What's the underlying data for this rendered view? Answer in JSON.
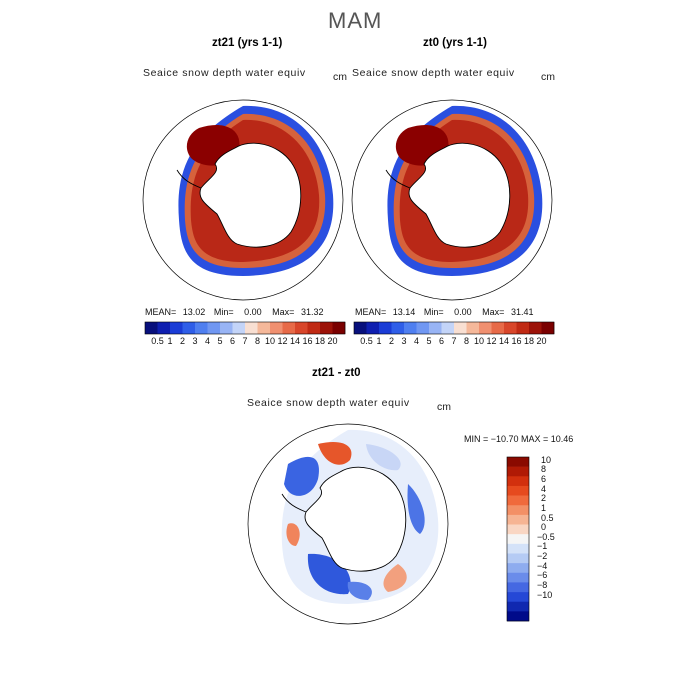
{
  "title": "MAM",
  "panels": [
    {
      "title": "zt21 (yrs 1-1)",
      "variable": "Seaice snow depth water equiv",
      "units": "cm",
      "stats": {
        "mean_label": "MEAN=",
        "mean": "13.02",
        "min_label": "Min=",
        "min": "0.00",
        "max_label": "Max=",
        "max": "31.32"
      }
    },
    {
      "title": "zt0 (yrs 1-1)",
      "variable": "Seaice snow depth water equiv",
      "units": "cm",
      "stats": {
        "mean_label": "MEAN=",
        "mean": "13.14",
        "min_label": "Min=",
        "min": "0.00",
        "max_label": "Max=",
        "max": "31.41"
      }
    }
  ],
  "diff": {
    "title": "zt21 - zt0",
    "variable": "Seaice snow depth water equiv",
    "units": "cm",
    "min_max_text": "MIN = −10.70 MAX =  10.46"
  },
  "colorbar_top": {
    "ticks": [
      "0.5",
      "1",
      "2",
      "3",
      "4",
      "5",
      "6",
      "7",
      "8",
      "10",
      "12",
      "14",
      "16",
      "18",
      "20"
    ],
    "colors": [
      "#08107c",
      "#0f1fb0",
      "#1a3cd6",
      "#2f5ee8",
      "#4f7ff0",
      "#7097f2",
      "#98b4f5",
      "#c3d4f8",
      "#f8dfd2",
      "#f5b89a",
      "#f09070",
      "#e76a48",
      "#d8462a",
      "#c02a14",
      "#9c1208",
      "#7a0000"
    ]
  },
  "colorbar_diff": {
    "labels": [
      "10",
      "8",
      "6",
      "4",
      "2",
      "1",
      "0.5",
      "0",
      "−0.5",
      "−1",
      "−2",
      "−4",
      "−6",
      "−8",
      "−10"
    ],
    "colors": [
      "#8a0a00",
      "#b01a05",
      "#d2300e",
      "#e64a1e",
      "#f06a3c",
      "#f39066",
      "#f6b493",
      "#f9d6c3",
      "#f5f5f5",
      "#d4e2f8",
      "#b5cbf4",
      "#8eacef",
      "#6a8cea",
      "#4568e2",
      "#2548d6",
      "#1028b0",
      "#000a8a"
    ]
  },
  "chart_data": {
    "type": "heatmap",
    "title": "MAM",
    "maps": [
      {
        "name": "zt21 (yrs 1-1)",
        "variable": "Seaice snow depth water equiv",
        "units": "cm",
        "mean": 13.02,
        "min": 0.0,
        "max": 31.32
      },
      {
        "name": "zt0 (yrs 1-1)",
        "variable": "Seaice snow depth water equiv",
        "units": "cm",
        "mean": 13.14,
        "min": 0.0,
        "max": 31.41
      },
      {
        "name": "zt21 - zt0",
        "variable": "Seaice snow depth water equiv",
        "units": "cm",
        "min": -10.7,
        "max": 10.46
      }
    ],
    "levels_top": [
      0.5,
      1,
      2,
      3,
      4,
      5,
      6,
      7,
      8,
      10,
      12,
      14,
      16,
      18,
      20
    ],
    "levels_diff": [
      -10,
      -8,
      -6,
      -4,
      -2,
      -1,
      -0.5,
      0,
      0.5,
      1,
      2,
      4,
      6,
      8,
      10
    ]
  }
}
